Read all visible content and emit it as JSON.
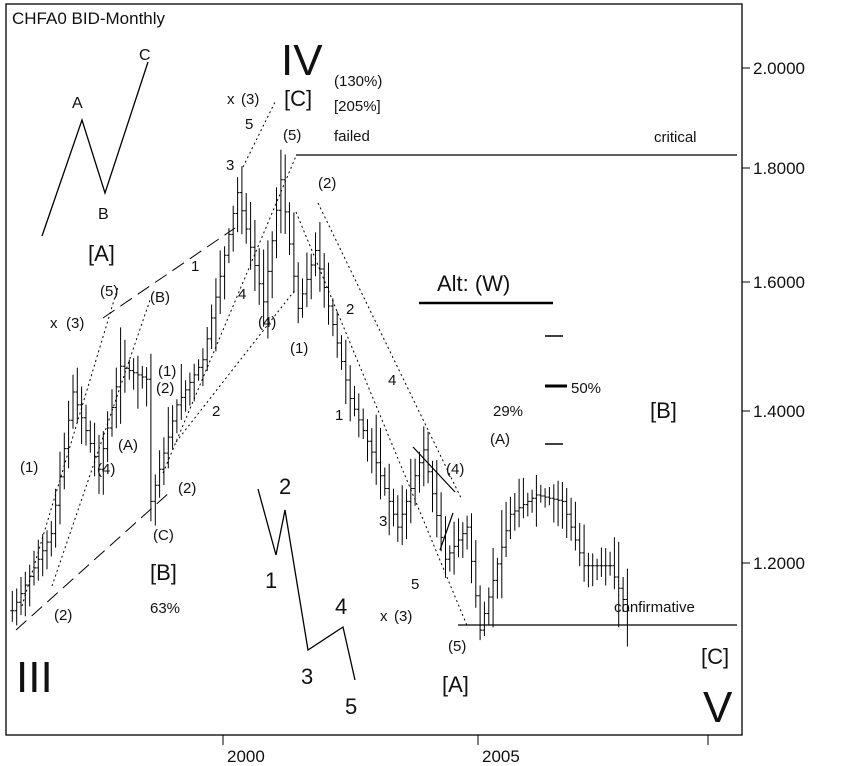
{
  "chart_data": {
    "type": "ohlc",
    "title": "CHFA0 BID-Monthly",
    "instrument": "CHFA0",
    "price_type": "BID",
    "period": "Monthly",
    "y_axis": {
      "range": [
        0.96,
        2.09
      ],
      "ticks": [
        2.0,
        1.8,
        1.6,
        1.4,
        1.2
      ],
      "tick_labels": [
        "2.0000",
        "1.8000",
        "1.6000",
        "1.4000",
        "1.2000"
      ]
    },
    "x_axis": {
      "range": [
        "1995-11",
        "2009-12"
      ],
      "tick_labels": [
        "2000",
        "2005"
      ]
    },
    "series": [
      {
        "approximate": true,
        "points": [
          [
            "1995-12",
            1.15
          ],
          [
            "1996-09",
            1.27
          ],
          [
            "1997-02",
            1.49
          ],
          [
            "1997-08",
            1.37
          ],
          [
            "1998-01",
            1.53
          ],
          [
            "1998-07",
            1.51
          ],
          [
            "1998-08",
            1.32
          ],
          [
            "1999-02",
            1.47
          ],
          [
            "1999-08",
            1.54
          ],
          [
            "2000-04",
            1.8
          ],
          [
            "2000-10",
            1.63
          ],
          [
            "2001-02",
            1.82
          ],
          [
            "2001-06",
            1.62
          ],
          [
            "2001-10",
            1.71
          ],
          [
            "2002-06",
            1.48
          ],
          [
            "2002-12",
            1.38
          ],
          [
            "2003-05",
            1.28
          ],
          [
            "2003-11",
            1.4
          ],
          [
            "2004-04",
            1.23
          ],
          [
            "2004-09",
            1.28
          ],
          [
            "2004-12",
            1.12
          ],
          [
            "2005-07",
            1.3
          ],
          [
            "2006-01",
            1.33
          ],
          [
            "2006-07",
            1.32
          ],
          [
            "2006-12",
            1.22
          ],
          [
            "2007-06",
            1.22
          ],
          [
            "2007-10",
            1.15
          ]
        ]
      }
    ],
    "horizontal_lines": [
      {
        "label": "critical",
        "y": 1.82
      },
      {
        "label": "confirmative",
        "y": 1.112
      },
      {
        "label": "Alt: (W)",
        "y": 1.578
      }
    ],
    "annotations": {
      "wave_main": [
        "III",
        "IV",
        "V"
      ],
      "bracket_labels": [
        "[A]",
        "[B]",
        "[C]",
        "[A]",
        "[B]",
        "[C]"
      ],
      "numbers": [
        "1",
        "2",
        "3",
        "4",
        "5"
      ],
      "wave_counts": [
        "(1)",
        "(2)",
        "(3)",
        "(4)",
        "(5)"
      ],
      "letters": [
        "A",
        "B",
        "C",
        "(A)",
        "(B)",
        "(C)"
      ],
      "x_labels": [
        "x",
        "x",
        "x"
      ],
      "percent": [
        "63%",
        "29%",
        "50%",
        "(130%)",
        "[205%]"
      ],
      "notes": [
        "failed"
      ]
    },
    "grid": false,
    "legend": "none"
  }
}
